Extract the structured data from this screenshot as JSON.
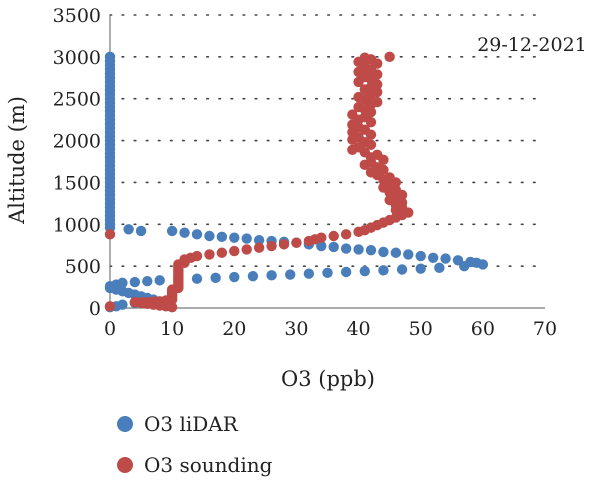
{
  "chart_data": {
    "type": "scatter",
    "title": "",
    "xlabel": "O3 (ppb)",
    "ylabel": "Altitude (m)",
    "xlim": [
      0,
      70
    ],
    "ylim": [
      0,
      3500
    ],
    "xticks": [
      "0",
      "10",
      "20",
      "30",
      "40",
      "50",
      "60",
      "70"
    ],
    "yticks": [
      "0",
      "500",
      "1000",
      "1500",
      "2000",
      "2500",
      "3000",
      "3500"
    ],
    "grid": "dotted",
    "annotation": "29-12-2021",
    "legend_position": "bottom-left",
    "series": [
      {
        "name": "O3 liDAR",
        "color": "#4a7ebb",
        "points": [
          [
            0,
            3000
          ],
          [
            0,
            2950
          ],
          [
            0,
            2900
          ],
          [
            0,
            2850
          ],
          [
            0,
            2800
          ],
          [
            0,
            2750
          ],
          [
            0,
            2700
          ],
          [
            0,
            2650
          ],
          [
            0,
            2600
          ],
          [
            0,
            2550
          ],
          [
            0,
            2500
          ],
          [
            0,
            2450
          ],
          [
            0,
            2400
          ],
          [
            0,
            2350
          ],
          [
            0,
            2300
          ],
          [
            0,
            2250
          ],
          [
            0,
            2200
          ],
          [
            0,
            2150
          ],
          [
            0,
            2100
          ],
          [
            0,
            2050
          ],
          [
            0,
            2000
          ],
          [
            0,
            1950
          ],
          [
            0,
            1900
          ],
          [
            0,
            1850
          ],
          [
            0,
            1800
          ],
          [
            0,
            1750
          ],
          [
            0,
            1700
          ],
          [
            0,
            1650
          ],
          [
            0,
            1600
          ],
          [
            0,
            1550
          ],
          [
            0,
            1500
          ],
          [
            0,
            1450
          ],
          [
            0,
            1400
          ],
          [
            0,
            1350
          ],
          [
            0,
            1300
          ],
          [
            0,
            1250
          ],
          [
            0,
            1200
          ],
          [
            0,
            1150
          ],
          [
            0,
            1100
          ],
          [
            0,
            1050
          ],
          [
            0,
            1000
          ],
          [
            0,
            960
          ],
          [
            3,
            940
          ],
          [
            5,
            920
          ],
          [
            10,
            920
          ],
          [
            12,
            900
          ],
          [
            14,
            880
          ],
          [
            16,
            860
          ],
          [
            18,
            850
          ],
          [
            20,
            840
          ],
          [
            22,
            830
          ],
          [
            24,
            810
          ],
          [
            26,
            800
          ],
          [
            28,
            790
          ],
          [
            30,
            780
          ],
          [
            32,
            760
          ],
          [
            34,
            740
          ],
          [
            36,
            730
          ],
          [
            38,
            710
          ],
          [
            40,
            700
          ],
          [
            42,
            690
          ],
          [
            44,
            670
          ],
          [
            46,
            660
          ],
          [
            48,
            640
          ],
          [
            50,
            620
          ],
          [
            52,
            600
          ],
          [
            54,
            590
          ],
          [
            56,
            570
          ],
          [
            58,
            550
          ],
          [
            59,
            540
          ],
          [
            60,
            520
          ],
          [
            57,
            500
          ],
          [
            53,
            480
          ],
          [
            50,
            470
          ],
          [
            47,
            460
          ],
          [
            44,
            450
          ],
          [
            41,
            440
          ],
          [
            38,
            430
          ],
          [
            35,
            420
          ],
          [
            32,
            410
          ],
          [
            29,
            400
          ],
          [
            26,
            390
          ],
          [
            23,
            380
          ],
          [
            20,
            370
          ],
          [
            17,
            360
          ],
          [
            14,
            350
          ],
          [
            11,
            340
          ],
          [
            8,
            330
          ],
          [
            6,
            320
          ],
          [
            4,
            310
          ],
          [
            2,
            300
          ],
          [
            1,
            280
          ],
          [
            0,
            260
          ],
          [
            0,
            240
          ],
          [
            1,
            220
          ],
          [
            2,
            200
          ],
          [
            3,
            180
          ],
          [
            4,
            160
          ],
          [
            5,
            140
          ],
          [
            6,
            120
          ],
          [
            7,
            100
          ],
          [
            6,
            80
          ],
          [
            4,
            60
          ],
          [
            2,
            40
          ],
          [
            1,
            20
          ],
          [
            0,
            10
          ]
        ]
      },
      {
        "name": "O3 sounding",
        "color": "#be4b48",
        "points": [
          [
            45,
            3000
          ],
          [
            41,
            2990
          ],
          [
            42,
            2970
          ],
          [
            40,
            2940
          ],
          [
            43,
            2920
          ],
          [
            41,
            2880
          ],
          [
            42,
            2850
          ],
          [
            40,
            2820
          ],
          [
            43,
            2790
          ],
          [
            41,
            2760
          ],
          [
            42,
            2730
          ],
          [
            40,
            2700
          ],
          [
            43,
            2670
          ],
          [
            42,
            2640
          ],
          [
            41,
            2610
          ],
          [
            43,
            2580
          ],
          [
            42,
            2550
          ],
          [
            40,
            2520
          ],
          [
            41,
            2490
          ],
          [
            43,
            2460
          ],
          [
            42,
            2430
          ],
          [
            40,
            2400
          ],
          [
            41,
            2370
          ],
          [
            42,
            2340
          ],
          [
            39,
            2310
          ],
          [
            41,
            2280
          ],
          [
            40,
            2250
          ],
          [
            42,
            2220
          ],
          [
            39,
            2190
          ],
          [
            40,
            2160
          ],
          [
            41,
            2130
          ],
          [
            39,
            2100
          ],
          [
            42,
            2070
          ],
          [
            40,
            2040
          ],
          [
            39,
            2010
          ],
          [
            41,
            1980
          ],
          [
            42,
            1950
          ],
          [
            40,
            1920
          ],
          [
            39,
            1890
          ],
          [
            41,
            1860
          ],
          [
            43,
            1830
          ],
          [
            42,
            1800
          ],
          [
            44,
            1770
          ],
          [
            42,
            1740
          ],
          [
            41,
            1710
          ],
          [
            43,
            1680
          ],
          [
            44,
            1650
          ],
          [
            42,
            1620
          ],
          [
            43,
            1590
          ],
          [
            45,
            1560
          ],
          [
            44,
            1530
          ],
          [
            46,
            1500
          ],
          [
            45,
            1470
          ],
          [
            44,
            1440
          ],
          [
            46,
            1410
          ],
          [
            45,
            1380
          ],
          [
            47,
            1350
          ],
          [
            46,
            1320
          ],
          [
            45,
            1290
          ],
          [
            47,
            1260
          ],
          [
            46,
            1230
          ],
          [
            47,
            1200
          ],
          [
            46,
            1170
          ],
          [
            48,
            1140
          ],
          [
            47,
            1110
          ],
          [
            46,
            1080
          ],
          [
            45,
            1050
          ],
          [
            44,
            1020
          ],
          [
            43,
            990
          ],
          [
            42,
            960
          ],
          [
            41,
            930
          ],
          [
            40,
            910
          ],
          [
            38,
            880
          ],
          [
            36,
            860
          ],
          [
            34,
            840
          ],
          [
            33,
            820
          ],
          [
            32,
            800
          ],
          [
            30,
            780
          ],
          [
            28,
            760
          ],
          [
            26,
            740
          ],
          [
            24,
            720
          ],
          [
            22,
            700
          ],
          [
            20,
            680
          ],
          [
            18,
            660
          ],
          [
            16,
            640
          ],
          [
            14,
            620
          ],
          [
            13,
            600
          ],
          [
            12,
            580
          ],
          [
            12,
            560
          ],
          [
            12,
            540
          ],
          [
            11,
            520
          ],
          [
            11,
            500
          ],
          [
            11,
            480
          ],
          [
            11,
            460
          ],
          [
            11,
            440
          ],
          [
            11,
            420
          ],
          [
            11,
            400
          ],
          [
            11,
            380
          ],
          [
            11,
            360
          ],
          [
            11,
            340
          ],
          [
            11,
            320
          ],
          [
            11,
            300
          ],
          [
            11,
            280
          ],
          [
            11,
            260
          ],
          [
            11,
            240
          ],
          [
            10,
            220
          ],
          [
            10,
            200
          ],
          [
            10,
            180
          ],
          [
            10,
            160
          ],
          [
            10,
            140
          ],
          [
            10,
            120
          ],
          [
            10,
            100
          ],
          [
            9,
            90
          ],
          [
            8,
            80
          ],
          [
            7,
            75
          ],
          [
            6,
            70
          ],
          [
            5,
            70
          ],
          [
            4,
            70
          ],
          [
            5,
            60
          ],
          [
            6,
            50
          ],
          [
            7,
            40
          ],
          [
            8,
            30
          ],
          [
            9,
            20
          ],
          [
            10,
            10
          ],
          [
            0,
            880
          ],
          [
            0,
            20
          ]
        ]
      }
    ]
  }
}
